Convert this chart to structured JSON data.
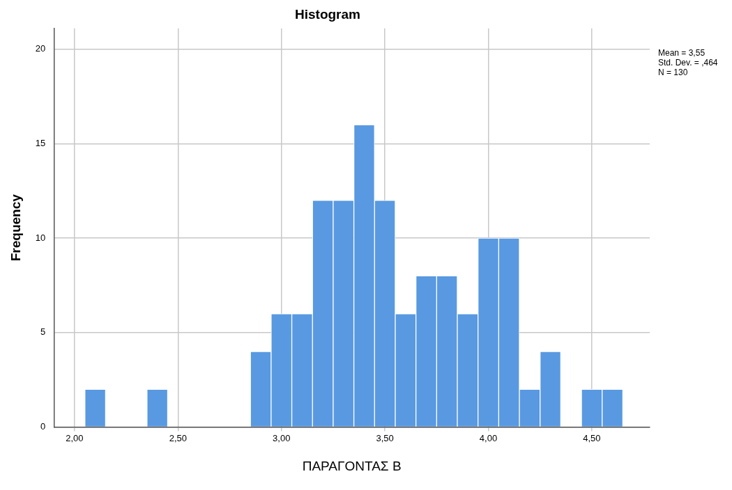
{
  "chart_data": {
    "type": "histogram",
    "title": "Histogram",
    "xlabel": "ΠΑΡΑΓΟΝΤΑΣ Β",
    "ylabel": "Frequency",
    "bins": [
      2.05,
      2.15,
      2.25,
      2.35,
      2.45,
      2.55,
      2.65,
      2.75,
      2.85,
      2.95,
      3.05,
      3.15,
      3.25,
      3.35,
      3.45,
      3.55,
      3.65,
      3.75,
      3.85,
      3.95,
      4.05,
      4.15,
      4.25,
      4.35,
      4.45,
      4.55,
      4.65
    ],
    "values": [
      2,
      0,
      0,
      2,
      0,
      0,
      0,
      0,
      4,
      6,
      6,
      12,
      12,
      16,
      12,
      6,
      8,
      8,
      6,
      10,
      10,
      2,
      4,
      0,
      2,
      2
    ],
    "color": "#5899e2",
    "xlim": [
      1.9,
      4.78
    ],
    "xticks": [
      {
        "value": 2,
        "label": "2,00"
      },
      {
        "value": 2.5,
        "label": "2,50"
      },
      {
        "value": 3,
        "label": "3,00"
      },
      {
        "value": 3.5,
        "label": "3,50"
      },
      {
        "value": 4,
        "label": "4,00"
      },
      {
        "value": 4.5,
        "label": "4,50"
      }
    ],
    "ylim": [
      0,
      21.1
    ],
    "yticks": [
      0,
      5,
      10,
      15,
      20
    ],
    "grid": true,
    "annotations": [
      "Mean = 3,55",
      "Std. Dev. = ,464",
      "N = 130"
    ]
  }
}
